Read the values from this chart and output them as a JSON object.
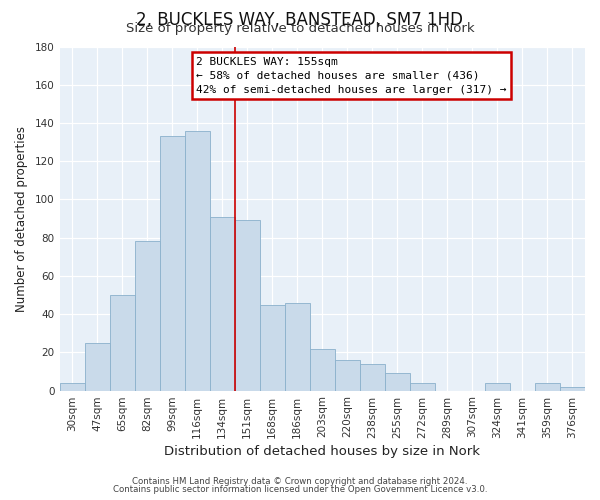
{
  "title": "2, BUCKLES WAY, BANSTEAD, SM7 1HD",
  "subtitle": "Size of property relative to detached houses in Nork",
  "xlabel": "Distribution of detached houses by size in Nork",
  "ylabel": "Number of detached properties",
  "bar_labels": [
    "30sqm",
    "47sqm",
    "65sqm",
    "82sqm",
    "99sqm",
    "116sqm",
    "134sqm",
    "151sqm",
    "168sqm",
    "186sqm",
    "203sqm",
    "220sqm",
    "238sqm",
    "255sqm",
    "272sqm",
    "289sqm",
    "307sqm",
    "324sqm",
    "341sqm",
    "359sqm",
    "376sqm"
  ],
  "bar_values": [
    4,
    25,
    50,
    78,
    133,
    136,
    91,
    89,
    45,
    46,
    22,
    16,
    14,
    9,
    4,
    0,
    0,
    4,
    0,
    4,
    2
  ],
  "bar_color": "#c9daea",
  "bar_edge_color": "#8ab0cc",
  "vline_color": "#cc0000",
  "vline_position": 6.5,
  "annotation_title": "2 BUCKLES WAY: 155sqm",
  "annotation_line1": "← 58% of detached houses are smaller (436)",
  "annotation_line2": "42% of semi-detached houses are larger (317) →",
  "annotation_box_edge": "#cc0000",
  "footnote1": "Contains HM Land Registry data © Crown copyright and database right 2024.",
  "footnote2": "Contains public sector information licensed under the Open Government Licence v3.0.",
  "ylim": [
    0,
    180
  ],
  "yticks": [
    0,
    20,
    40,
    60,
    80,
    100,
    120,
    140,
    160,
    180
  ],
  "bg_color": "#ffffff",
  "plot_bg_color": "#e8f0f8",
  "grid_color": "#ffffff",
  "title_fontsize": 12,
  "subtitle_fontsize": 9.5,
  "xlabel_fontsize": 9.5,
  "ylabel_fontsize": 8.5,
  "tick_fontsize": 7.5,
  "annotation_fontsize": 8,
  "footnote_fontsize": 6.2
}
